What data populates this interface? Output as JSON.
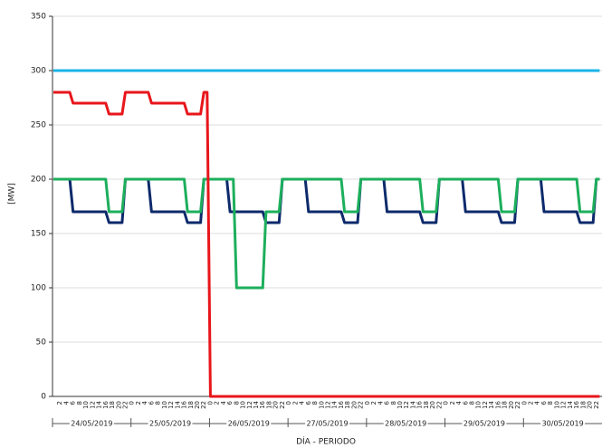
{
  "chart_data": {
    "type": "line",
    "y_label": "[MW]",
    "x_label": "DÍA - PERIODO",
    "days": [
      "24/05/2019",
      "25/05/2019",
      "26/05/2019",
      "27/05/2019",
      "28/05/2019",
      "29/05/2019",
      "30/05/2019"
    ],
    "categories": [
      null,
      null,
      "2",
      null,
      "4",
      null,
      "6",
      null,
      "8",
      null,
      "10",
      null,
      "12",
      null,
      "14",
      null,
      "16",
      null,
      "18",
      null,
      "20",
      null,
      "22",
      null,
      "0",
      null,
      "2",
      null,
      "4",
      null,
      "6",
      null,
      "8",
      null,
      "10",
      null,
      "12",
      null,
      "14",
      null,
      "16",
      null,
      "18",
      null,
      "20",
      null,
      "22",
      null,
      "0",
      null,
      "2",
      null,
      "4",
      null,
      "6",
      null,
      "8",
      null,
      "10",
      null,
      "12",
      null,
      "14",
      null,
      "16",
      null,
      "18",
      null,
      "20",
      null,
      "22",
      null,
      "0",
      null,
      "2",
      null,
      "4",
      null,
      "6",
      null,
      "8",
      null,
      "10",
      null,
      "12",
      null,
      "14",
      null,
      "16",
      null,
      "18",
      null,
      "20",
      null,
      "22",
      null,
      "0",
      null,
      "2",
      null,
      "4",
      null,
      "6",
      null,
      "8",
      null,
      "10",
      null,
      "12",
      null,
      "14",
      null,
      "16",
      null,
      "18",
      null,
      "20",
      null,
      "22",
      null,
      "0",
      null,
      "2",
      null,
      "4",
      null,
      "6",
      null,
      "8",
      null,
      "10",
      null,
      "12",
      null,
      "14",
      null,
      "16",
      null,
      "18",
      null,
      "20",
      null,
      "22",
      null,
      "0",
      null,
      "2",
      null,
      "4",
      null,
      "6",
      null,
      "8",
      null,
      "10",
      null,
      "12",
      null,
      "14",
      null,
      "16",
      null,
      "18",
      null,
      "20",
      null,
      "22",
      null
    ],
    "ylim": [
      0,
      350
    ],
    "yticks": [
      0,
      50,
      100,
      150,
      200,
      250,
      300,
      350
    ],
    "grid": true,
    "series": [
      {
        "color": "#1ab4e8",
        "values": [
          300,
          300,
          300,
          300,
          300,
          300,
          300,
          300,
          300,
          300,
          300,
          300,
          300,
          300,
          300,
          300,
          300,
          300,
          300,
          300,
          300,
          300,
          300,
          300,
          300,
          300,
          300,
          300,
          300,
          300,
          300,
          300,
          300,
          300,
          300,
          300,
          300,
          300,
          300,
          300,
          300,
          300,
          300,
          300,
          300,
          300,
          300,
          300,
          300,
          300,
          300,
          300,
          300,
          300,
          300,
          300,
          300,
          300,
          300,
          300,
          300,
          300,
          300,
          300,
          300,
          300,
          300,
          300,
          300,
          300,
          300,
          300,
          300,
          300,
          300,
          300,
          300,
          300,
          300,
          300,
          300,
          300,
          300,
          300,
          300,
          300,
          300,
          300,
          300,
          300,
          300,
          300,
          300,
          300,
          300,
          300,
          300,
          300,
          300,
          300,
          300,
          300,
          300,
          300,
          300,
          300,
          300,
          300,
          300,
          300,
          300,
          300,
          300,
          300,
          300,
          300,
          300,
          300,
          300,
          300,
          300,
          300,
          300,
          300,
          300,
          300,
          300,
          300,
          300,
          300,
          300,
          300,
          300,
          300,
          300,
          300,
          300,
          300,
          300,
          300,
          300,
          300,
          300,
          300,
          300,
          300,
          300,
          300,
          300,
          300,
          300,
          300,
          300,
          300,
          300,
          300,
          300,
          300,
          300,
          300,
          300,
          300,
          300,
          300,
          300,
          300,
          300,
          300
        ]
      },
      {
        "color": "#0d2a6b",
        "values": [
          200,
          200,
          200,
          200,
          200,
          200,
          170,
          170,
          170,
          170,
          170,
          170,
          170,
          170,
          170,
          170,
          170,
          160,
          160,
          160,
          160,
          160,
          200,
          200,
          200,
          200,
          200,
          200,
          200,
          200,
          170,
          170,
          170,
          170,
          170,
          170,
          170,
          170,
          170,
          170,
          170,
          160,
          160,
          160,
          160,
          160,
          200,
          200,
          200,
          200,
          200,
          200,
          200,
          200,
          170,
          170,
          170,
          170,
          170,
          170,
          170,
          170,
          170,
          170,
          170,
          160,
          160,
          160,
          160,
          160,
          200,
          200,
          200,
          200,
          200,
          200,
          200,
          200,
          170,
          170,
          170,
          170,
          170,
          170,
          170,
          170,
          170,
          170,
          170,
          160,
          160,
          160,
          160,
          160,
          200,
          200,
          200,
          200,
          200,
          200,
          200,
          200,
          170,
          170,
          170,
          170,
          170,
          170,
          170,
          170,
          170,
          170,
          170,
          160,
          160,
          160,
          160,
          160,
          200,
          200,
          200,
          200,
          200,
          200,
          200,
          200,
          170,
          170,
          170,
          170,
          170,
          170,
          170,
          170,
          170,
          170,
          170,
          160,
          160,
          160,
          160,
          160,
          200,
          200,
          200,
          200,
          200,
          200,
          200,
          200,
          170,
          170,
          170,
          170,
          170,
          170,
          170,
          170,
          170,
          170,
          170,
          160,
          160,
          160,
          160,
          160,
          200,
          200
        ]
      },
      {
        "color": "#1daf5c",
        "values": [
          200,
          200,
          200,
          200,
          200,
          200,
          200,
          200,
          200,
          200,
          200,
          200,
          200,
          200,
          200,
          200,
          200,
          170,
          170,
          170,
          170,
          170,
          200,
          200,
          200,
          200,
          200,
          200,
          200,
          200,
          200,
          200,
          200,
          200,
          200,
          200,
          200,
          200,
          200,
          200,
          200,
          170,
          170,
          170,
          170,
          170,
          200,
          200,
          200,
          200,
          200,
          200,
          200,
          200,
          200,
          200,
          100,
          100,
          100,
          100,
          100,
          100,
          100,
          100,
          100,
          170,
          170,
          170,
          170,
          170,
          200,
          200,
          200,
          200,
          200,
          200,
          200,
          200,
          200,
          200,
          200,
          200,
          200,
          200,
          200,
          200,
          200,
          200,
          200,
          170,
          170,
          170,
          170,
          170,
          200,
          200,
          200,
          200,
          200,
          200,
          200,
          200,
          200,
          200,
          200,
          200,
          200,
          200,
          200,
          200,
          200,
          200,
          200,
          170,
          170,
          170,
          170,
          170,
          200,
          200,
          200,
          200,
          200,
          200,
          200,
          200,
          200,
          200,
          200,
          200,
          200,
          200,
          200,
          200,
          200,
          200,
          200,
          170,
          170,
          170,
          170,
          170,
          200,
          200,
          200,
          200,
          200,
          200,
          200,
          200,
          200,
          200,
          200,
          200,
          200,
          200,
          200,
          200,
          200,
          200,
          200,
          170,
          170,
          170,
          170,
          170,
          200,
          200
        ]
      },
      {
        "color": "#e8161b",
        "values": [
          280,
          280,
          280,
          280,
          280,
          280,
          270,
          270,
          270,
          270,
          270,
          270,
          270,
          270,
          270,
          270,
          270,
          260,
          260,
          260,
          260,
          260,
          280,
          280,
          280,
          280,
          280,
          280,
          280,
          280,
          270,
          270,
          270,
          270,
          270,
          270,
          270,
          270,
          270,
          270,
          270,
          260,
          260,
          260,
          260,
          260,
          280,
          280,
          0,
          0,
          0,
          0,
          0,
          0,
          0,
          0,
          0,
          0,
          0,
          0,
          0,
          0,
          0,
          0,
          0,
          0,
          0,
          0,
          0,
          0,
          0,
          0,
          0,
          0,
          0,
          0,
          0,
          0,
          0,
          0,
          0,
          0,
          0,
          0,
          0,
          0,
          0,
          0,
          0,
          0,
          0,
          0,
          0,
          0,
          0,
          0,
          0,
          0,
          0,
          0,
          0,
          0,
          0,
          0,
          0,
          0,
          0,
          0,
          0,
          0,
          0,
          0,
          0,
          0,
          0,
          0,
          0,
          0,
          0,
          0,
          0,
          0,
          0,
          0,
          0,
          0,
          0,
          0,
          0,
          0,
          0,
          0,
          0,
          0,
          0,
          0,
          0,
          0,
          0,
          0,
          0,
          0,
          0,
          0,
          0,
          0,
          0,
          0,
          0,
          0,
          0,
          0,
          0,
          0,
          0,
          0,
          0,
          0,
          0,
          0,
          0,
          0,
          0,
          0,
          0,
          0,
          0,
          0
        ]
      }
    ]
  }
}
